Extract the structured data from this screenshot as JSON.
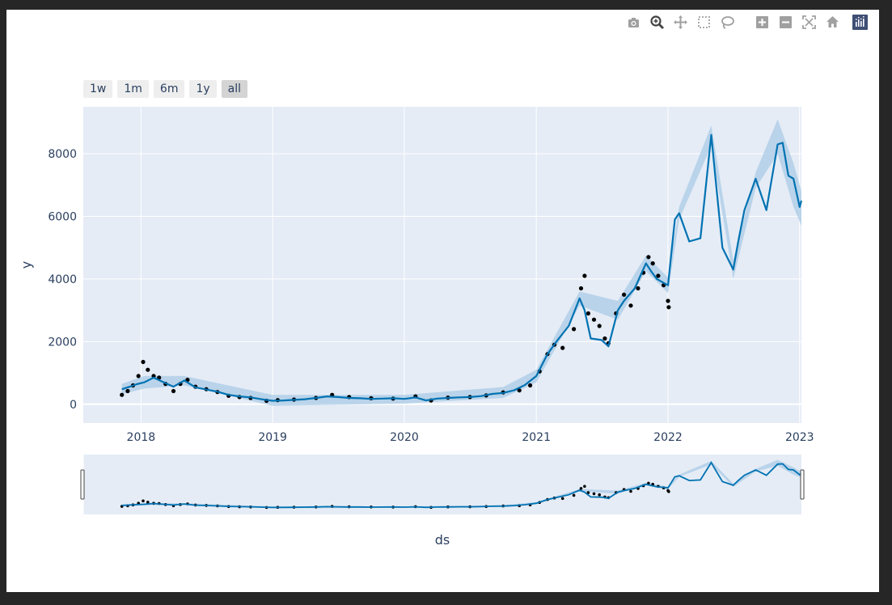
{
  "toolbar": {
    "icons": [
      "camera-icon",
      "zoom-icon",
      "pan-icon",
      "box-select-icon",
      "lasso-icon",
      "zoom-in-icon",
      "zoom-out-icon",
      "autoscale-icon",
      "reset-axes-icon",
      "plotly-logo-icon"
    ]
  },
  "range_selector": {
    "buttons": [
      {
        "label": "1w",
        "active": false
      },
      {
        "label": "1m",
        "active": false
      },
      {
        "label": "6m",
        "active": false
      },
      {
        "label": "1y",
        "active": false
      },
      {
        "label": "all",
        "active": true
      }
    ]
  },
  "chart_data": {
    "type": "line",
    "title": "",
    "xlabel": "ds",
    "ylabel": "y",
    "x_tick_labels": [
      "2018",
      "2019",
      "2020",
      "2021",
      "2022",
      "2023"
    ],
    "y_tick_labels": [
      "0",
      "2000",
      "4000",
      "6000",
      "8000"
    ],
    "y_ticks": [
      0,
      2000,
      4000,
      6000,
      8000
    ],
    "xlim": [
      "2017-07-25",
      "2023-01-06"
    ],
    "ylim": [
      -600,
      9500
    ],
    "grid": true,
    "colors": {
      "plot_bg": "#e5ecf6",
      "forecast_line": "#0072b2",
      "uncertainty_band": "#a9cbe5",
      "actual_points": "#000000",
      "axis_text": "#2a3f5f"
    },
    "series": [
      {
        "kind": "line",
        "x": [
          "2017-11-09",
          "2017-12-01",
          "2017-12-20",
          "2018-01-10",
          "2018-02-05",
          "2018-03-01",
          "2018-04-01",
          "2018-05-01",
          "2018-06-01",
          "2018-07-01",
          "2018-08-01",
          "2018-09-01",
          "2018-10-01",
          "2018-11-01",
          "2018-12-01",
          "2019-01-01",
          "2019-02-01",
          "2019-03-01",
          "2019-04-01",
          "2019-05-01",
          "2019-06-01",
          "2019-07-01",
          "2019-08-01",
          "2019-09-01",
          "2019-10-01",
          "2019-11-01",
          "2019-12-01",
          "2020-01-01",
          "2020-02-01",
          "2020-03-01",
          "2020-04-01",
          "2020-05-01",
          "2020-06-01",
          "2020-07-01",
          "2020-08-01",
          "2020-09-01",
          "2020-10-01",
          "2020-11-01",
          "2020-12-01",
          "2021-01-01",
          "2021-02-01",
          "2021-03-01",
          "2021-04-01",
          "2021-05-01",
          "2021-05-15",
          "2021-06-01",
          "2021-07-01",
          "2021-07-20",
          "2021-08-15",
          "2021-09-01",
          "2021-10-01",
          "2021-11-01",
          "2021-11-15",
          "2021-12-01",
          "2022-01-01",
          "2022-01-20",
          "2022-02-01",
          "2022-03-01",
          "2022-04-01",
          "2022-05-01",
          "2022-05-12",
          "2022-06-01",
          "2022-07-01",
          "2022-07-15",
          "2022-08-01",
          "2022-09-01",
          "2022-10-01",
          "2022-11-01",
          "2022-11-15",
          "2022-12-01",
          "2022-12-15",
          "2023-01-01",
          "2023-01-06"
        ],
        "y": [
          480,
          560,
          640,
          700,
          850,
          720,
          560,
          760,
          540,
          470,
          400,
          300,
          250,
          220,
          160,
          110,
          120,
          140,
          160,
          200,
          250,
          230,
          200,
          190,
          170,
          180,
          190,
          170,
          220,
          120,
          180,
          200,
          220,
          230,
          260,
          330,
          360,
          450,
          620,
          900,
          1600,
          2050,
          2500,
          3380,
          3000,
          2100,
          2050,
          1850,
          3000,
          3300,
          3700,
          4500,
          4250,
          4000,
          3800,
          5900,
          6100,
          5200,
          5300,
          8600,
          7300,
          5000,
          4300,
          5200,
          6200,
          7200,
          6200,
          8300,
          8350,
          7300,
          7200,
          6300,
          6500
        ]
      },
      {
        "kind": "band",
        "x": [
          "2017-11-09",
          "2018-01-10",
          "2018-05-01",
          "2019-01-01",
          "2020-01-01",
          "2020-10-01",
          "2021-01-01",
          "2021-05-01",
          "2021-08-15",
          "2021-11-01",
          "2022-01-01",
          "2022-02-01",
          "2022-05-01",
          "2022-07-01",
          "2022-09-01",
          "2022-11-01",
          "2022-12-15",
          "2023-01-06"
        ],
        "upper": [
          650,
          900,
          900,
          300,
          300,
          550,
          1100,
          3600,
          3300,
          4750,
          4050,
          6300,
          8900,
          4600,
          7400,
          9100,
          7700,
          6800
        ],
        "lower": [
          320,
          500,
          600,
          -50,
          20,
          200,
          700,
          3150,
          2700,
          4250,
          3550,
          5900,
          8250,
          4000,
          6900,
          8000,
          6300,
          5700
        ]
      },
      {
        "kind": "scatter",
        "x": [
          "2017-11-09",
          "2017-11-25",
          "2017-12-10",
          "2017-12-25",
          "2018-01-07",
          "2018-01-20",
          "2018-02-05",
          "2018-02-20",
          "2018-03-10",
          "2018-04-01",
          "2018-04-20",
          "2018-05-10",
          "2018-06-01",
          "2018-07-01",
          "2018-08-01",
          "2018-09-01",
          "2018-10-01",
          "2018-11-01",
          "2018-12-15",
          "2019-01-15",
          "2019-03-01",
          "2019-05-01",
          "2019-06-15",
          "2019-08-01",
          "2019-10-01",
          "2019-12-01",
          "2020-02-01",
          "2020-03-15",
          "2020-05-01",
          "2020-07-01",
          "2020-08-15",
          "2020-10-01",
          "2020-11-15",
          "2020-12-15",
          "2021-01-10",
          "2021-02-01",
          "2021-02-20",
          "2021-03-15",
          "2021-04-15",
          "2021-05-05",
          "2021-05-15",
          "2021-05-25",
          "2021-06-10",
          "2021-06-25",
          "2021-07-10",
          "2021-07-20",
          "2021-08-10",
          "2021-09-01",
          "2021-09-20",
          "2021-10-10",
          "2021-10-25",
          "2021-11-08",
          "2021-11-20",
          "2021-12-05",
          "2021-12-20",
          "2022-01-01",
          "2022-01-03"
        ],
        "y": [
          300,
          420,
          600,
          900,
          1350,
          1100,
          900,
          850,
          650,
          420,
          650,
          780,
          560,
          480,
          390,
          270,
          230,
          200,
          110,
          130,
          150,
          200,
          300,
          230,
          190,
          180,
          250,
          120,
          210,
          230,
          280,
          380,
          440,
          600,
          1050,
          1600,
          1900,
          1800,
          2400,
          3700,
          4100,
          2900,
          2700,
          2500,
          2100,
          1950,
          2900,
          3500,
          3150,
          3700,
          4200,
          4700,
          4500,
          4100,
          3800,
          3300,
          3100
        ]
      }
    ],
    "rangeslider": {
      "enabled": true
    }
  }
}
